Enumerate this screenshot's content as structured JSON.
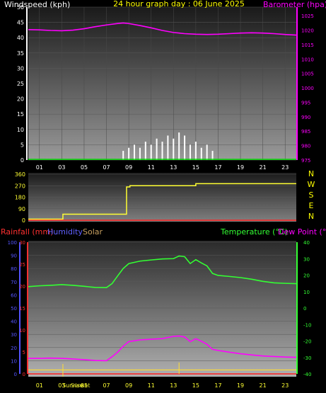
{
  "top": {
    "label_left": "Windspeed (kph)",
    "title": "24 hour graph day : 06 June 2025",
    "label_right": "Barometer (hpa)"
  },
  "bottom": {
    "label_rain": "Rainfall (mm)",
    "label_humidity": "Humidity",
    "label_solar": "Solar",
    "label_temp": "Temperature (°C)",
    "label_dew": "Dew Point (°C)",
    "sunrise_label": "Sunrise",
    "sunset_label": "Sunset"
  },
  "colors": {
    "wind": "#ffffff",
    "gust": "#00dd00",
    "barometer": "#ff00ff",
    "direction": "#ffff33",
    "rain": "#ff2020",
    "humidity": "#ff00ff",
    "temperature": "#33ff33",
    "solar": "#ffdd33",
    "title": "#ffff00",
    "axis_left_bottom": "#5555ff",
    "axis_left_rain": "#ff3030"
  },
  "chart_data": [
    {
      "type": "area",
      "name": "wind",
      "x_ticks": [
        "01",
        "03",
        "05",
        "07",
        "09",
        "11",
        "13",
        "15",
        "17",
        "19",
        "21",
        "23"
      ],
      "y_ticks": [
        0,
        5,
        10,
        15,
        20,
        25,
        30,
        35,
        40,
        45,
        50
      ],
      "y_right_ticks": [
        975,
        980,
        985,
        990,
        995,
        1000,
        1005,
        1010,
        1015,
        1020,
        1025
      ],
      "ylim": [
        0,
        50
      ],
      "y_right_lim": [
        975,
        1028
      ],
      "series": [
        {
          "name": "Windspeed (kph)",
          "x": [
            0,
            1,
            2,
            3,
            4,
            5,
            6,
            7,
            8,
            8.5,
            9,
            9.5,
            10,
            10.5,
            11,
            11.5,
            12,
            12.5,
            13,
            13.5,
            14,
            14.5,
            15,
            15.5,
            16,
            16.5,
            17,
            18,
            19,
            20,
            21,
            22,
            23,
            24
          ],
          "values": [
            0,
            0,
            0,
            0,
            0,
            0,
            0,
            0,
            0,
            3,
            4,
            5,
            4,
            6,
            5,
            7,
            6,
            8,
            7,
            9,
            8,
            5,
            6,
            4,
            5,
            3,
            0,
            0,
            0,
            0,
            0,
            0,
            0,
            0
          ]
        },
        {
          "name": "Barometer (hpa)",
          "x": [
            0,
            1,
            2,
            3,
            4,
            5,
            6,
            7,
            8,
            8.5,
            9,
            10,
            11,
            12,
            13,
            14,
            15,
            16,
            17,
            18,
            19,
            20,
            21,
            22,
            23,
            24
          ],
          "values": [
            1020.2,
            1020.1,
            1019.9,
            1019.8,
            1020.0,
            1020.5,
            1021.2,
            1021.8,
            1022.3,
            1022.5,
            1022.3,
            1021.6,
            1020.8,
            1019.9,
            1019.2,
            1018.8,
            1018.6,
            1018.5,
            1018.6,
            1018.8,
            1019.0,
            1019.1,
            1019.0,
            1018.8,
            1018.5,
            1018.3
          ]
        }
      ]
    },
    {
      "type": "line",
      "name": "wind-direction",
      "y_ticks": [
        0,
        90,
        180,
        270,
        360
      ],
      "ylim": [
        0,
        360
      ],
      "compass": [
        "N",
        "W",
        "S",
        "E",
        "N"
      ],
      "series": [
        {
          "name": "Wind direction",
          "x": [
            0,
            3.1,
            3.1,
            8.8,
            8.8,
            9.1,
            9.1,
            15.0,
            15.0,
            24
          ],
          "values": [
            8,
            8,
            47,
            47,
            260,
            260,
            270,
            270,
            286,
            286
          ]
        }
      ]
    },
    {
      "type": "line",
      "name": "temperature",
      "x_ticks": [
        "01",
        "03",
        "05",
        "07",
        "09",
        "11",
        "13",
        "15",
        "17",
        "19",
        "21",
        "23"
      ],
      "y_left_ticks": [
        0,
        10,
        20,
        30,
        40,
        50,
        60,
        70,
        80,
        90,
        100
      ],
      "y_rain_ticks": [
        0,
        5,
        10,
        15,
        20,
        25,
        30
      ],
      "y_right_ticks": [
        -40,
        -30,
        -20,
        -10,
        0,
        10,
        20,
        30,
        40
      ],
      "ylim_left": [
        0,
        100
      ],
      "ylim_right": [
        -40,
        40
      ],
      "series": [
        {
          "name": "Temperature (°C)",
          "x": [
            0,
            1,
            2,
            3,
            4,
            5,
            6,
            7,
            7.5,
            8,
            8.5,
            9,
            10,
            11,
            12,
            13,
            13.5,
            14,
            14.5,
            15,
            15.5,
            16,
            16.5,
            17,
            18,
            19,
            20,
            21,
            22,
            23,
            24
          ],
          "values": [
            13.0,
            13.5,
            13.8,
            14.2,
            13.8,
            13.2,
            12.5,
            12.4,
            14.8,
            19.5,
            24.0,
            27.0,
            28.5,
            29.2,
            29.8,
            30.0,
            31.6,
            31.2,
            27.0,
            29.4,
            27.4,
            25.6,
            21.0,
            19.8,
            19.2,
            18.5,
            17.5,
            16.2,
            15.3,
            15.0,
            14.8
          ]
        },
        {
          "name": "Humidity",
          "x": [
            0,
            1,
            2,
            3,
            4,
            5,
            6,
            7,
            7.5,
            8,
            8.5,
            9,
            10,
            11,
            12,
            13,
            13.5,
            14,
            14.5,
            15,
            15.5,
            16,
            16.5,
            17,
            18,
            19,
            20,
            21,
            22,
            23,
            24
          ],
          "values": [
            11.8,
            11.8,
            12.0,
            11.8,
            11.3,
            10.8,
            10.2,
            10.0,
            13.0,
            16.5,
            21.0,
            24.5,
            25.8,
            26.3,
            26.8,
            28.5,
            28.8,
            28.0,
            24.5,
            26.7,
            24.8,
            22.5,
            18.6,
            17.8,
            16.5,
            15.3,
            14.4,
            13.6,
            13.2,
            12.8,
            12.6
          ]
        },
        {
          "name": "Rainfall (mm)",
          "x": [
            0,
            24
          ],
          "values": [
            0,
            0
          ]
        },
        {
          "name": "Solar",
          "x": [
            0,
            24
          ],
          "values": [
            3,
            3
          ]
        }
      ]
    }
  ]
}
